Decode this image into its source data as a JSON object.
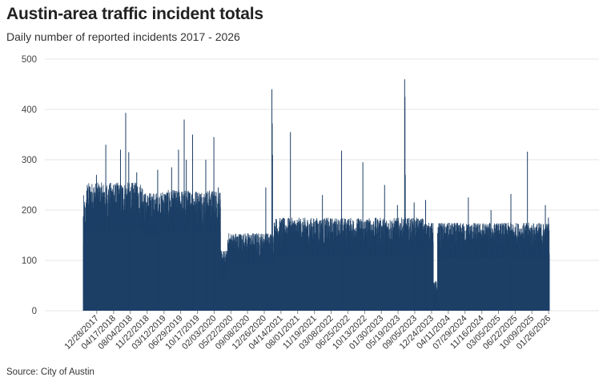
{
  "header": {
    "title": "Austin-area traffic incident totals",
    "subtitle": "Daily number of reported incidents 2017 - 2026"
  },
  "footer": {
    "source": "Source: City of Austin"
  },
  "colors": {
    "bar": "#1c3f66",
    "grid": "#e4e4e4",
    "axis_text": "#444444"
  },
  "chart_data": {
    "type": "bar",
    "title": "Austin-area traffic incident totals",
    "subtitle": "Daily number of reported incidents 2017 - 2026",
    "xlabel": "",
    "ylabel": "",
    "ylim": [
      0,
      500
    ],
    "yticks": [
      0,
      100,
      200,
      300,
      400,
      500
    ],
    "grid": true,
    "legend": "none",
    "x_range": [
      "2017-10-01",
      "2026-01-31"
    ],
    "x_tick_labels": [
      "12/28/2017",
      "04/17/2018",
      "08/04/2018",
      "11/22/2018",
      "03/12/2019",
      "06/29/2019",
      "10/17/2019",
      "02/03/2020",
      "05/22/2020",
      "09/08/2020",
      "12/26/2020",
      "04/14/2021",
      "08/01/2021",
      "11/19/2021",
      "03/08/2022",
      "06/25/2022",
      "10/13/2022",
      "01/30/2023",
      "05/19/2023",
      "09/05/2023",
      "12/24/2023",
      "04/11/2024",
      "07/29/2024",
      "11/16/2024",
      "03/05/2025",
      "06/22/2025",
      "10/09/2025",
      "01/26/2026"
    ],
    "daily_level_segments": [
      {
        "start": "2017-10-01",
        "end": "2017-10-20",
        "low": 40,
        "high": 230
      },
      {
        "start": "2017-10-21",
        "end": "2018-10-31",
        "low": 160,
        "high": 255
      },
      {
        "start": "2018-11-01",
        "end": "2019-02-28",
        "low": 150,
        "high": 235
      },
      {
        "start": "2019-03-01",
        "end": "2020-03-15",
        "low": 155,
        "high": 240
      },
      {
        "start": "2020-03-16",
        "end": "2020-04-30",
        "low": 65,
        "high": 120
      },
      {
        "start": "2020-05-01",
        "end": "2021-02-28",
        "low": 95,
        "high": 155
      },
      {
        "start": "2021-03-01",
        "end": "2023-10-31",
        "low": 110,
        "high": 185
      },
      {
        "start": "2023-11-01",
        "end": "2024-01-04",
        "low": 125,
        "high": 175
      },
      {
        "start": "2024-01-05",
        "end": "2024-01-31",
        "low": 5,
        "high": 60
      },
      {
        "start": "2024-02-01",
        "end": "2026-01-31",
        "low": 105,
        "high": 175
      }
    ],
    "spikes": [
      {
        "x": "2017-12-26",
        "y": 270
      },
      {
        "x": "2018-02-25",
        "y": 330
      },
      {
        "x": "2018-04-15",
        "y": 250
      },
      {
        "x": "2018-06-01",
        "y": 320
      },
      {
        "x": "2018-07-05",
        "y": 393
      },
      {
        "x": "2018-07-25",
        "y": 315
      },
      {
        "x": "2018-09-15",
        "y": 275
      },
      {
        "x": "2019-01-30",
        "y": 280
      },
      {
        "x": "2019-05-01",
        "y": 285
      },
      {
        "x": "2019-06-15",
        "y": 320
      },
      {
        "x": "2019-07-22",
        "y": 380
      },
      {
        "x": "2019-08-05",
        "y": 300
      },
      {
        "x": "2019-09-15",
        "y": 350
      },
      {
        "x": "2019-12-10",
        "y": 300
      },
      {
        "x": "2020-02-01",
        "y": 345
      },
      {
        "x": "2020-03-01",
        "y": 245
      },
      {
        "x": "2021-01-05",
        "y": 245
      },
      {
        "x": "2021-02-14",
        "y": 440
      },
      {
        "x": "2021-02-16",
        "y": 372
      },
      {
        "x": "2021-02-18",
        "y": 310
      },
      {
        "x": "2021-06-15",
        "y": 355
      },
      {
        "x": "2022-01-10",
        "y": 230
      },
      {
        "x": "2022-05-15",
        "y": 318
      },
      {
        "x": "2022-10-01",
        "y": 295
      },
      {
        "x": "2023-02-20",
        "y": 250
      },
      {
        "x": "2023-05-15",
        "y": 210
      },
      {
        "x": "2023-07-01",
        "y": 460
      },
      {
        "x": "2023-07-03",
        "y": 425
      },
      {
        "x": "2023-07-05",
        "y": 270
      },
      {
        "x": "2023-09-01",
        "y": 215
      },
      {
        "x": "2023-11-15",
        "y": 220
      },
      {
        "x": "2024-08-20",
        "y": 225
      },
      {
        "x": "2025-01-15",
        "y": 200
      },
      {
        "x": "2025-05-25",
        "y": 232
      },
      {
        "x": "2025-09-10",
        "y": 316
      },
      {
        "x": "2026-01-05",
        "y": 210
      },
      {
        "x": "2026-01-25",
        "y": 185
      }
    ]
  }
}
